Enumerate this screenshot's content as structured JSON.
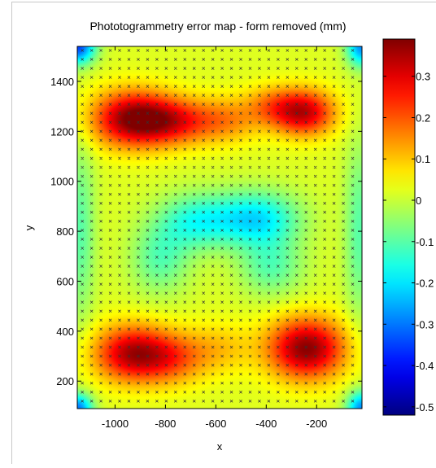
{
  "chart_data": {
    "type": "heatmap",
    "title": "Phototogrammetry error map - form removed (mm)",
    "xlabel": "x",
    "ylabel": "y",
    "xlim": [
      -1150,
      -20
    ],
    "ylim": [
      90,
      1540
    ],
    "x_ticks": [
      -1000,
      -800,
      -600,
      -400,
      -200
    ],
    "y_ticks": [
      200,
      400,
      600,
      800,
      1000,
      1200,
      1400
    ],
    "x_tick_labels": [
      "-1000",
      "-800",
      "-600",
      "-400",
      "-200"
    ],
    "y_tick_labels": [
      "200",
      "400",
      "600",
      "800",
      "1000",
      "1200",
      "1400"
    ],
    "colorbar": {
      "colormap": "jet",
      "clim": [
        -0.52,
        0.39
      ],
      "ticks": [
        0.3,
        0.2,
        0.1,
        0,
        -0.1,
        -0.2,
        -0.3,
        -0.4,
        -0.5
      ],
      "tick_labels": [
        "0.3",
        "0.2",
        "0.1",
        "0",
        "-0.1",
        "-0.2",
        "-0.3",
        "-0.4",
        "-0.5"
      ]
    },
    "measurement_grid": {
      "marker": "x",
      "x_start": -1130,
      "x_step": 37,
      "x_count": 30,
      "y_start": 120,
      "y_step": 36,
      "y_count": 40
    },
    "baseline": 0.02,
    "features": [
      {
        "x": -930,
        "y": 1250,
        "value": 0.37,
        "sx": 160,
        "sy": 110
      },
      {
        "x": -760,
        "y": 1240,
        "value": 0.22,
        "sx": 150,
        "sy": 90
      },
      {
        "x": -560,
        "y": 1245,
        "value": 0.14,
        "sx": 130,
        "sy": 90
      },
      {
        "x": -250,
        "y": 1275,
        "value": 0.32,
        "sx": 120,
        "sy": 90
      },
      {
        "x": -380,
        "y": 1300,
        "value": 0.14,
        "sx": 110,
        "sy": 80
      },
      {
        "x": -930,
        "y": 310,
        "value": 0.34,
        "sx": 150,
        "sy": 110
      },
      {
        "x": -770,
        "y": 290,
        "value": 0.16,
        "sx": 130,
        "sy": 100
      },
      {
        "x": -240,
        "y": 330,
        "value": 0.38,
        "sx": 150,
        "sy": 120
      },
      {
        "x": -590,
        "y": 330,
        "value": 0.1,
        "sx": 140,
        "sy": 100
      },
      {
        "x": -440,
        "y": 850,
        "value": -0.2,
        "sx": 170,
        "sy": 110
      },
      {
        "x": -680,
        "y": 840,
        "value": -0.14,
        "sx": 150,
        "sy": 110
      },
      {
        "x": -820,
        "y": 690,
        "value": -0.1,
        "sx": 120,
        "sy": 140
      },
      {
        "x": -380,
        "y": 660,
        "value": -0.1,
        "sx": 130,
        "sy": 120
      },
      {
        "x": -1150,
        "y": 1540,
        "value": -0.35,
        "sx": 70,
        "sy": 70
      },
      {
        "x": -20,
        "y": 1540,
        "value": -0.28,
        "sx": 60,
        "sy": 80
      },
      {
        "x": -1150,
        "y": 90,
        "value": -0.3,
        "sx": 60,
        "sy": 60
      },
      {
        "x": -20,
        "y": 90,
        "value": -0.28,
        "sx": 60,
        "sy": 70
      },
      {
        "x": -1140,
        "y": 800,
        "value": -0.1,
        "sx": 60,
        "sy": 350
      },
      {
        "x": -30,
        "y": 800,
        "value": -0.1,
        "sx": 60,
        "sy": 350
      }
    ]
  }
}
